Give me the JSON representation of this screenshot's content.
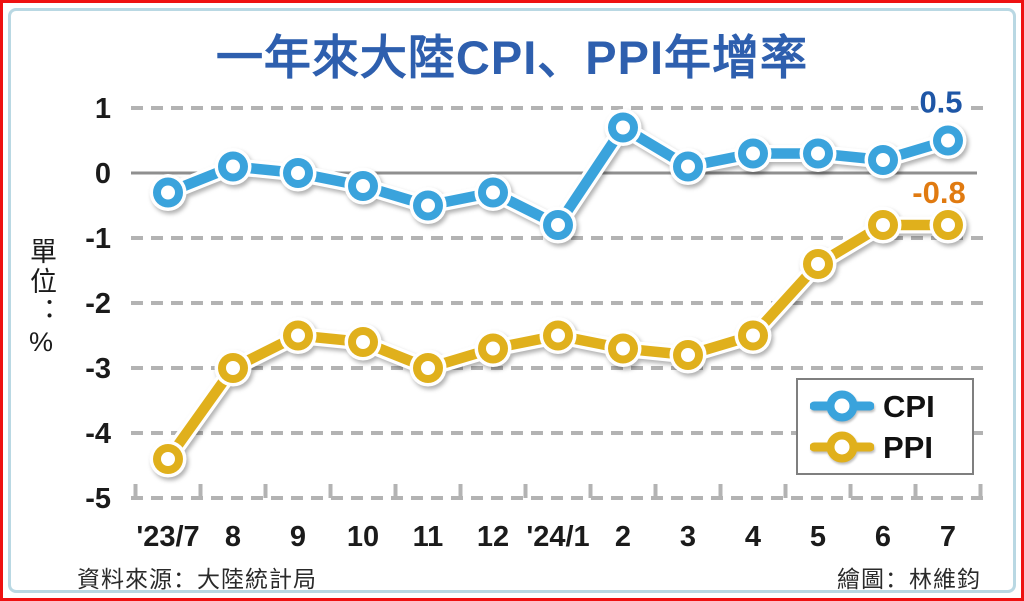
{
  "title": "一年來大陸CPI、PPI年增率",
  "footer": {
    "source": "資料來源：大陸統計局",
    "credit": "繪圖：林維鈞"
  },
  "chart_data": {
    "type": "line",
    "title": "一年來大陸CPI、PPI年增率",
    "ylabel": "單位：%",
    "unit": "%",
    "categories": [
      "'23/7",
      "8",
      "9",
      "10",
      "11",
      "12",
      "'24/1",
      "2",
      "3",
      "4",
      "5",
      "6",
      "7"
    ],
    "series": [
      {
        "name": "CPI",
        "color": "#3aa3dc",
        "label_color": "#1e56a6",
        "end_label": "0.5",
        "values": [
          -0.3,
          0.1,
          0.0,
          -0.2,
          -0.5,
          -0.3,
          -0.8,
          0.7,
          0.1,
          0.3,
          0.3,
          0.2,
          0.5
        ]
      },
      {
        "name": "PPI",
        "color": "#e0b01c",
        "label_color": "#e07a10",
        "end_label": "-0.8",
        "values": [
          -4.4,
          -3.0,
          -2.5,
          -2.6,
          -3.0,
          -2.7,
          -2.5,
          -2.7,
          -2.8,
          -2.5,
          -1.4,
          -0.8,
          -0.8
        ]
      }
    ],
    "y_ticks": [
      1,
      0,
      -1,
      -2,
      -3,
      -4,
      -5
    ],
    "ylim": [
      -5,
      1
    ],
    "grid": true,
    "legend_position": "lower-right",
    "legend_labels": [
      "CPI",
      "PPI"
    ]
  },
  "colors": {
    "title": "#2e5fae",
    "outer_border": "#ee1111",
    "inner_border": "#b9d8e3",
    "grid": "#b3b3b3",
    "zero_line": "#8f8f8f",
    "axis_text": "#1b1b1b",
    "footer_text": "#2a2a2a",
    "legend_border": "#7f7f7f",
    "background": "#ffffff"
  }
}
